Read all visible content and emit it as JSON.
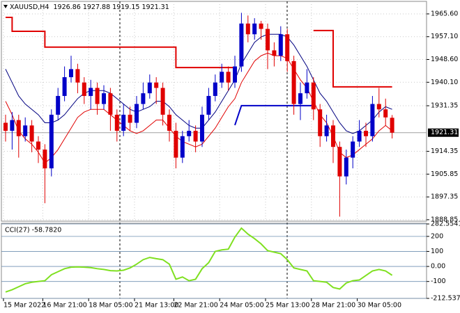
{
  "chart_data": {
    "type": "candlestick",
    "symbol": "XAUUSD,H4",
    "open": [
      1925,
      1922,
      1926,
      1920,
      1924,
      1918,
      1915,
      1908,
      1928,
      1935,
      1942,
      1945,
      1940,
      1935,
      1938,
      1932,
      1936,
      1928,
      1922,
      1928,
      1925,
      1932,
      1936,
      1940,
      1938,
      1928,
      1922,
      1912,
      1920,
      1922,
      1918,
      1928,
      1935,
      1940,
      1944,
      1940,
      1946,
      1962,
      1958,
      1962,
      1960,
      1952,
      1950,
      1958,
      1948,
      1932,
      1936,
      1940,
      1930,
      1920,
      1924,
      1916,
      1905,
      1912,
      1918,
      1922,
      1920,
      1932,
      1930,
      1926.86
    ],
    "high": [
      1928,
      1929,
      1928,
      1927,
      1926,
      1920,
      1917,
      1930,
      1938,
      1946,
      1950,
      1947,
      1942,
      1941,
      1940,
      1939,
      1938,
      1930,
      1932,
      1931,
      1935,
      1940,
      1943,
      1942,
      1940,
      1930,
      1925,
      1922,
      1926,
      1924,
      1931,
      1938,
      1943,
      1947,
      1946,
      1950,
      1966,
      1965,
      1964,
      1963,
      1962,
      1955,
      1961,
      1960,
      1950,
      1940,
      1945,
      1942,
      1932,
      1928,
      1926,
      1918,
      1915,
      1920,
      1926,
      1925,
      1935,
      1938,
      1934,
      1927.88
    ],
    "low": [
      1918,
      1915,
      1912,
      1918,
      1914,
      1910,
      1895,
      1905,
      1926,
      1933,
      1940,
      1936,
      1932,
      1930,
      1928,
      1930,
      1922,
      1918,
      1920,
      1922,
      1923,
      1930,
      1934,
      1932,
      1924,
      1918,
      1908,
      1910,
      1918,
      1914,
      1916,
      1926,
      1933,
      1938,
      1937,
      1938,
      1944,
      1955,
      1956,
      1956,
      1945,
      1946,
      1948,
      1944,
      1928,
      1926,
      1934,
      1926,
      1916,
      1918,
      1910,
      1890,
      1902,
      1908,
      1916,
      1916,
      1918,
      1927,
      1924,
      1919.15
    ],
    "close": [
      1922,
      1926,
      1920,
      1924,
      1918,
      1915,
      1908,
      1928,
      1935,
      1942,
      1945,
      1940,
      1935,
      1938,
      1932,
      1936,
      1928,
      1922,
      1928,
      1925,
      1932,
      1936,
      1940,
      1938,
      1928,
      1922,
      1912,
      1920,
      1922,
      1918,
      1928,
      1935,
      1940,
      1944,
      1940,
      1946,
      1962,
      1958,
      1962,
      1960,
      1952,
      1950,
      1958,
      1948,
      1932,
      1936,
      1940,
      1930,
      1920,
      1924,
      1916,
      1905,
      1912,
      1918,
      1922,
      1920,
      1932,
      1930,
      1927,
      1921.31
    ],
    "up_color": "#0000c8",
    "down_color": "#e00000",
    "categories": [
      "15 Mar 2022",
      null,
      null,
      null,
      null,
      null,
      "16 Mar 21:00",
      null,
      null,
      null,
      null,
      null,
      null,
      "18 Mar 05:00",
      null,
      null,
      null,
      null,
      null,
      null,
      "21 Mar 13:00",
      null,
      null,
      null,
      null,
      null,
      "22 Mar 21:00",
      null,
      null,
      null,
      null,
      null,
      null,
      "24 Mar 05:00",
      null,
      null,
      null,
      null,
      null,
      null,
      "25 Mar 13:00",
      null,
      null,
      null,
      null,
      null,
      null,
      "28 Mar 21:00",
      null,
      null,
      null,
      null,
      null,
      null,
      "30 Mar 05:00",
      null,
      null,
      null,
      null,
      null
    ],
    "series": [
      {
        "color": "#000080",
        "values": [
          1945,
          1940,
          1935,
          1932,
          1930,
          1928,
          1925,
          1925,
          1926,
          1928,
          1931,
          1934,
          1936,
          1937,
          1937,
          1937,
          1936,
          1934,
          1932,
          1930,
          1929,
          1930,
          1931,
          1933,
          1933,
          1931,
          1928,
          1926,
          1924,
          1923,
          1923,
          1926,
          1929,
          1933,
          1937,
          1941,
          1947,
          1951,
          1955,
          1957,
          1958,
          1958,
          1958,
          1957,
          1954,
          1950,
          1946,
          1941,
          1936,
          1933,
          1929,
          1925,
          1922,
          1921,
          1922,
          1924,
          1926,
          1929,
          1931,
          1930
        ]
      },
      {
        "color": "#e00000",
        "values": [
          1933,
          1928,
          1922,
          1919,
          1917,
          1914,
          1910,
          1912,
          1915,
          1919,
          1923,
          1927,
          1929,
          1930,
          1930,
          1930,
          1928,
          1926,
          1924,
          1922,
          1921,
          1922,
          1924,
          1926,
          1926,
          1923,
          1920,
          1918,
          1917,
          1916,
          1917,
          1920,
          1923,
          1927,
          1931,
          1934,
          1940,
          1944,
          1948,
          1950,
          1951,
          1950,
          1950,
          1949,
          1945,
          1941,
          1938,
          1933,
          1928,
          1925,
          1920,
          1914,
          1912,
          1913,
          1915,
          1917,
          1919,
          1922,
          1924,
          1922
        ]
      }
    ],
    "step_lines": [
      {
        "color": "#e00000",
        "x": [
          0,
          1,
          1,
          6,
          6,
          26,
          26,
          35,
          41,
          47,
          50,
          50,
          59
        ],
        "values": [
          1964.3,
          1964.3,
          1959.1,
          1959.1,
          1953.2,
          1953.2,
          1945.6,
          1945.6,
          null,
          1959.4,
          1959.4,
          1938.4,
          1938.4
        ]
      },
      {
        "color": "#0000c8",
        "x": [
          35,
          36,
          47
        ],
        "values": [
          1924.1,
          1931.4,
          1931.4
        ]
      }
    ],
    "ylim": [
      1888.3,
      1970
    ],
    "yticks": [
      {
        "value": 1965.6,
        "label": "1965.60"
      },
      {
        "value": 1957.1,
        "label": "1957.10"
      },
      {
        "value": 1948.6,
        "label": "1948.60"
      },
      {
        "value": 1940.1,
        "label": "1940.10"
      },
      1931.35,
      1914.35,
      1905.85,
      1897.35,
      1888.85
    ],
    "grid": true,
    "indicator": {
      "title": "CCI(27) -58.7820",
      "color": "#7fe020",
      "values": [
        -170,
        -155,
        -135,
        -115,
        -105,
        -100,
        -95,
        -55,
        -35,
        -15,
        -5,
        -3,
        -5,
        -8,
        -15,
        -20,
        -28,
        -30,
        -25,
        -10,
        15,
        45,
        60,
        52,
        45,
        15,
        -85,
        -70,
        -95,
        -85,
        -15,
        25,
        100,
        110,
        115,
        195,
        255,
        215,
        185,
        150,
        105,
        95,
        85,
        45,
        -10,
        -20,
        -30,
        -95,
        -100,
        -105,
        -140,
        -150,
        -110,
        -95,
        -90,
        -60,
        -30,
        -20,
        -30,
        -58.782
      ],
      "ylim": [
        -212.5375,
        282.5541
      ],
      "yticks": [
        282.5541,
        200,
        100,
        {
          "value": 0,
          "label": "0.00"
        },
        -100,
        -212.5375
      ]
    }
  }
}
